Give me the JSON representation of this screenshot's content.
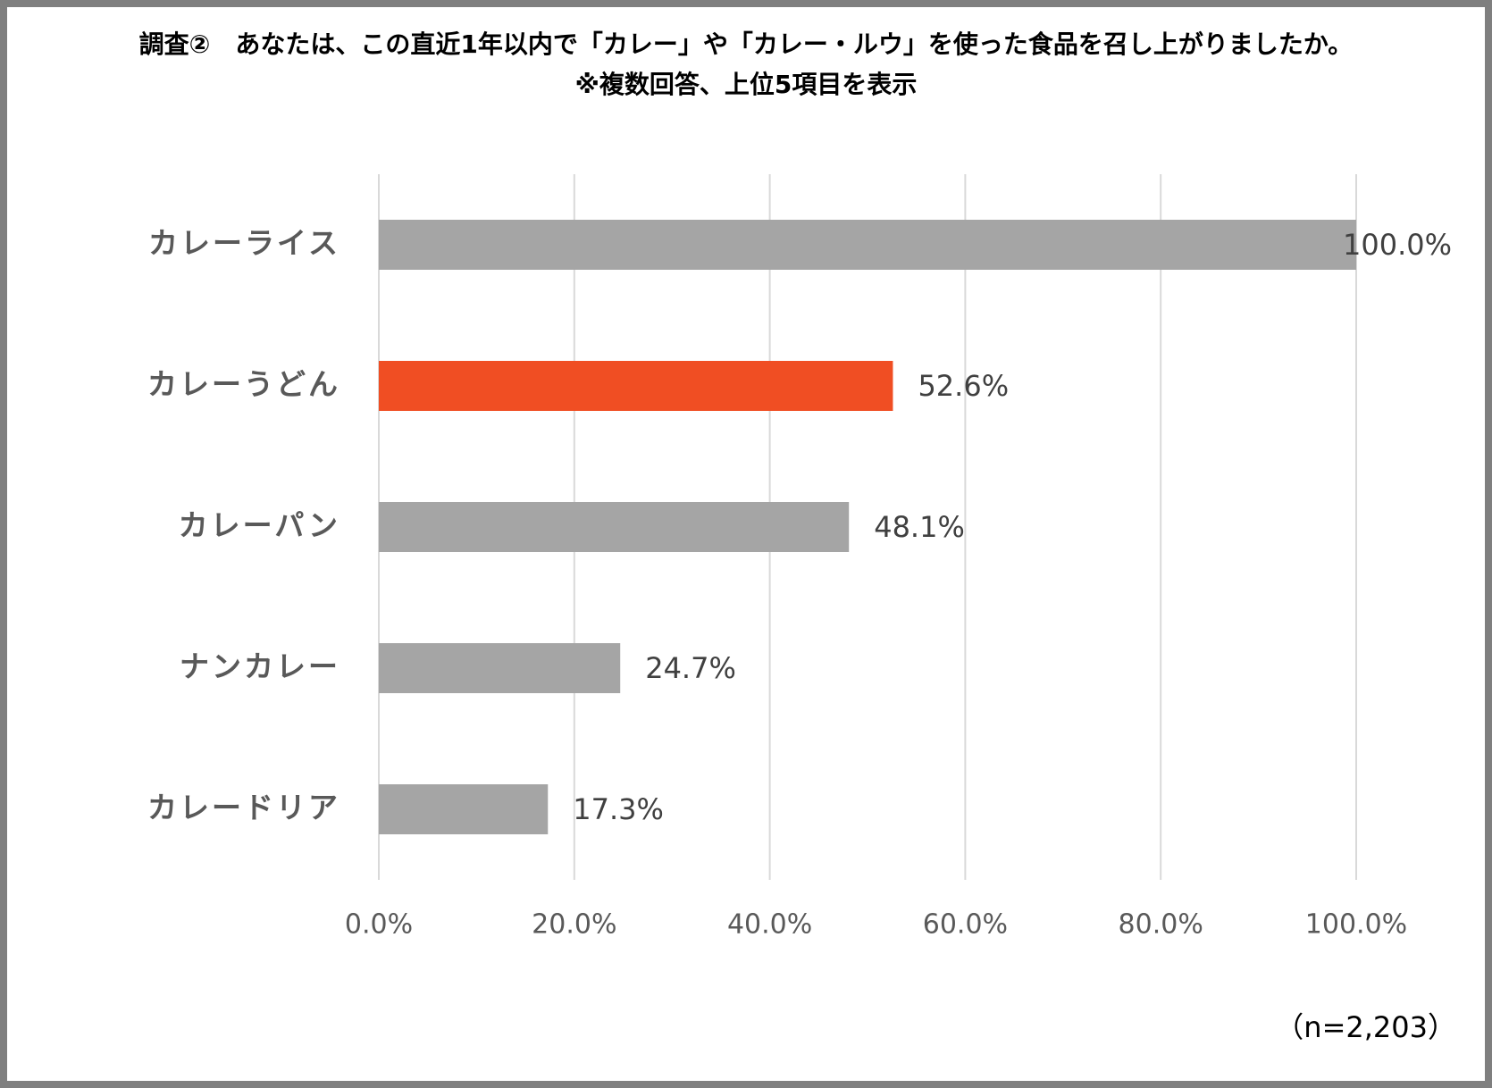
{
  "chart_data": {
    "type": "bar",
    "orientation": "horizontal",
    "title": "調査②　あなたは、この直近1年以内で「カレー」や「カレー・ルウ」を使った食品を召し上がりましたか。",
    "subtitle": "※複数回答、上位5項目を表示",
    "categories": [
      "カレーライス",
      "カレーうどん",
      "カレーパン",
      "ナンカレー",
      "カレードリア"
    ],
    "values": [
      100.0,
      52.6,
      48.1,
      24.7,
      17.3
    ],
    "value_labels": [
      "100.0%",
      "52.6%",
      "48.1%",
      "24.7%",
      "17.3%"
    ],
    "colors": [
      "#a5a5a5",
      "#f04e23",
      "#a5a5a5",
      "#a5a5a5",
      "#a5a5a5"
    ],
    "xlim": [
      0,
      100
    ],
    "xticks": [
      {
        "value": 0,
        "label": "0.0%"
      },
      {
        "value": 20,
        "label": "20.0%"
      },
      {
        "value": 40,
        "label": "40.0%"
      },
      {
        "value": 60,
        "label": "60.0%"
      },
      {
        "value": 80,
        "label": "80.0%"
      },
      {
        "value": 100,
        "label": "100.0%"
      }
    ],
    "grid": true,
    "note": "（n=2,203）"
  }
}
